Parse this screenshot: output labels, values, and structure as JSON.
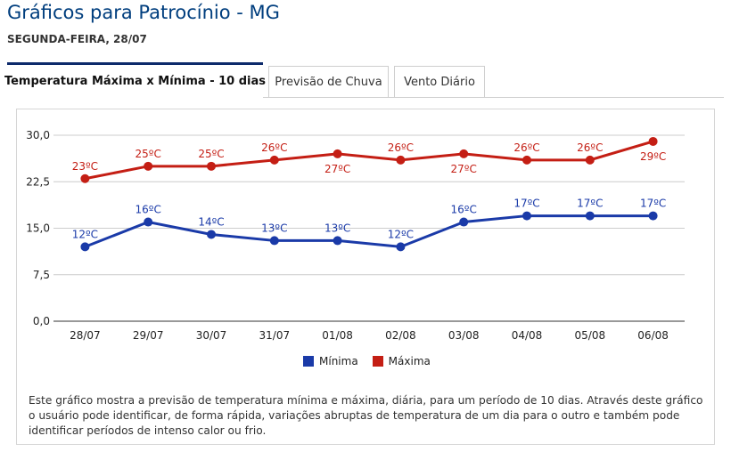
{
  "page": {
    "title": "Gráficos para Patrocínio - MG",
    "date": "SEGUNDA-FEIRA, 28/07"
  },
  "tabs": [
    {
      "label": "Temperatura Máxima x Mínima - 10 dias",
      "active": true
    },
    {
      "label": "Previsão de Chuva",
      "active": false
    },
    {
      "label": "Vento Diário",
      "active": false
    }
  ],
  "colors": {
    "minima": "#1a3aa8",
    "maxima": "#c41e14",
    "grid": "#cccccc"
  },
  "chart_data": {
    "type": "line",
    "categories": [
      "28/07",
      "29/07",
      "30/07",
      "31/07",
      "01/08",
      "02/08",
      "03/08",
      "04/08",
      "05/08",
      "06/08"
    ],
    "ylim": [
      0,
      30
    ],
    "yticks": [
      "0,0",
      "7,5",
      "15,0",
      "22,5",
      "30,0"
    ],
    "grid": true,
    "legend_position": "bottom",
    "series": [
      {
        "name": "Mínima",
        "values": [
          12,
          16,
          14,
          13,
          13,
          12,
          16,
          17,
          17,
          17
        ],
        "labels": [
          "12ºC",
          "16ºC",
          "14ºC",
          "13ºC",
          "13ºC",
          "12ºC",
          "16ºC",
          "17ºC",
          "17ºC",
          "17ºC"
        ],
        "label_pos": [
          "above",
          "above",
          "above",
          "above",
          "above",
          "above",
          "above",
          "above",
          "above",
          "above"
        ]
      },
      {
        "name": "Máxima",
        "values": [
          23,
          25,
          25,
          26,
          27,
          26,
          27,
          26,
          26,
          29
        ],
        "labels": [
          "23ºC",
          "25ºC",
          "25ºC",
          "26ºC",
          "27ºC",
          "26ºC",
          "27ºC",
          "26ºC",
          "26ºC",
          "29ºC"
        ],
        "label_pos": [
          "above",
          "above",
          "above",
          "above",
          "below",
          "above",
          "below",
          "above",
          "above",
          "below"
        ]
      }
    ]
  },
  "description": "Este gráfico mostra a previsão de temperatura mínima e máxima, diária, para um período de 10 dias. Através deste gráfico o usuário pode identificar, de forma rápida, variações abruptas de temperatura de um dia para o outro e também pode identificar períodos de intenso calor ou frio."
}
